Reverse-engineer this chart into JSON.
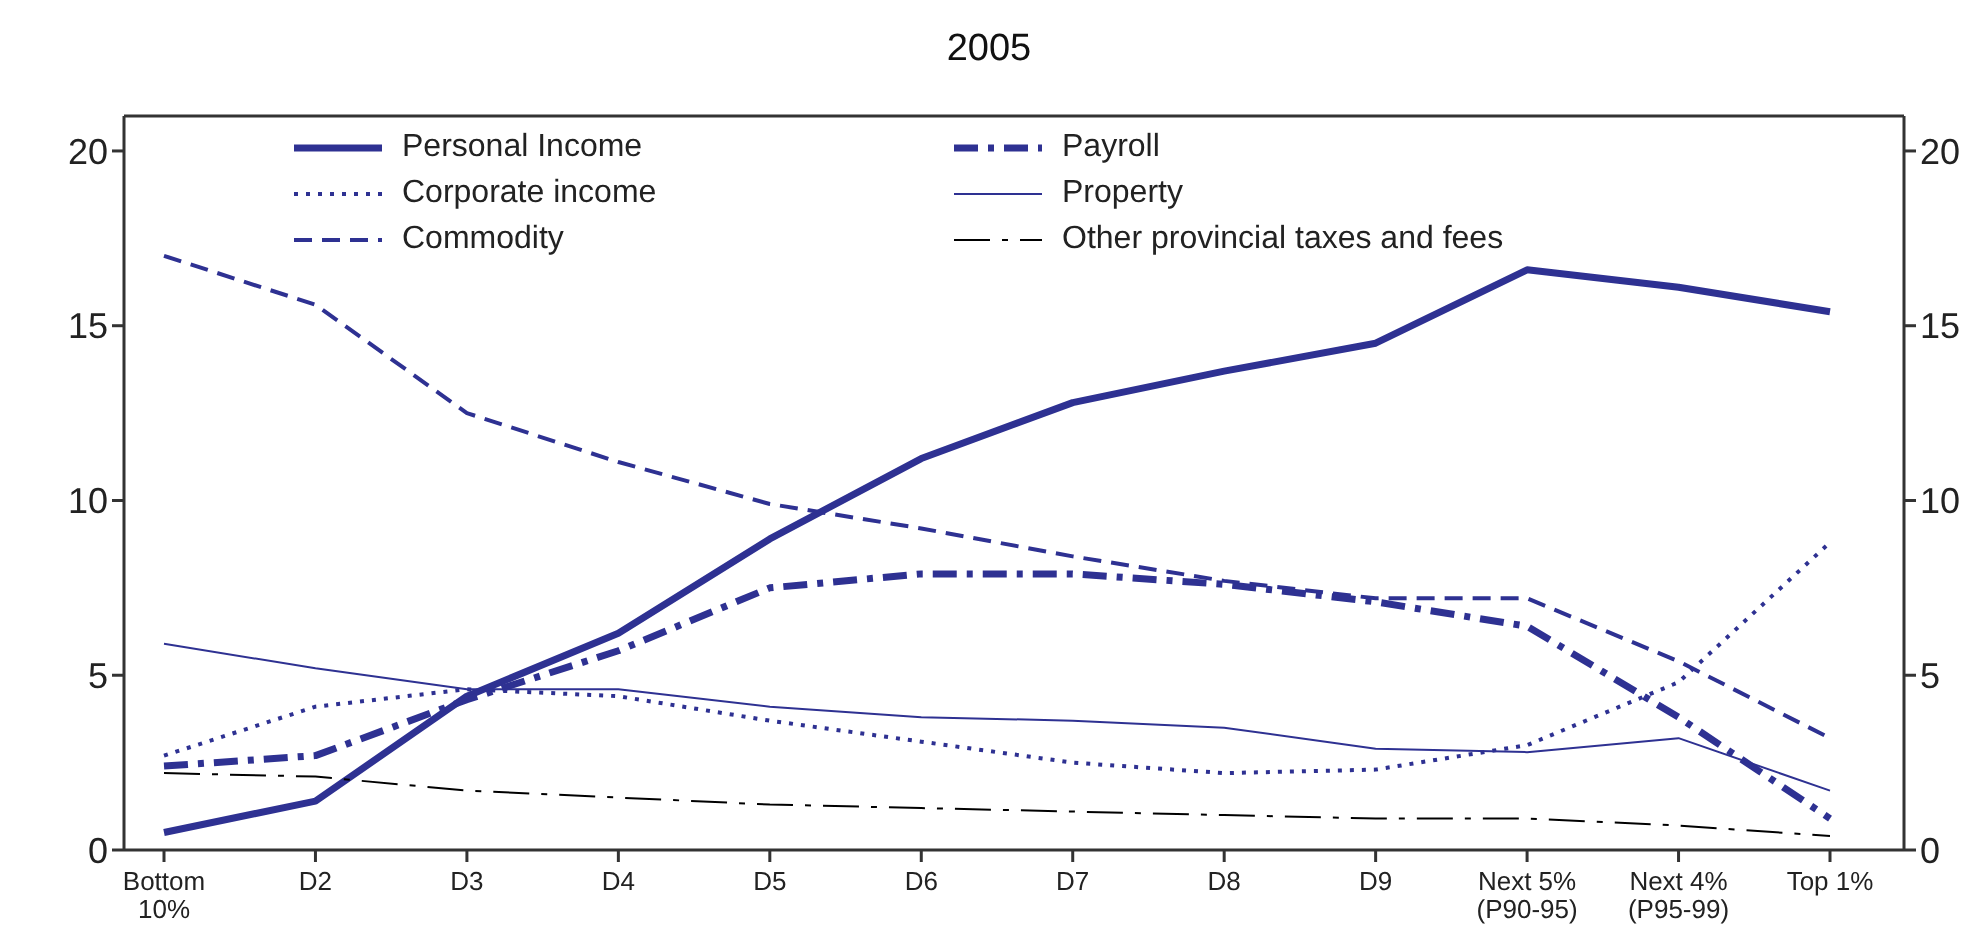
{
  "chart_data": {
    "type": "line",
    "title": "2005",
    "categories": [
      "Bottom\n10%",
      "D2",
      "D3",
      "D4",
      "D5",
      "D6",
      "D7",
      "D8",
      "D9",
      "Next 5%\n(P90-95)",
      "Next 4%\n(P95-99)",
      "Top 1%"
    ],
    "series": [
      {
        "name": "Personal Income",
        "color": "#2e3192",
        "line_style": "solid",
        "values": [
          0.5,
          1.4,
          4.4,
          6.2,
          8.9,
          11.2,
          12.8,
          13.7,
          14.5,
          16.6,
          16.1,
          15.4
        ]
      },
      {
        "name": "Corporate income",
        "color": "#2e3192",
        "line_style": "dotted",
        "values": [
          2.7,
          4.1,
          4.6,
          4.4,
          3.7,
          3.1,
          2.5,
          2.2,
          2.3,
          3.0,
          4.8,
          8.8
        ]
      },
      {
        "name": "Commodity",
        "color": "#2e3192",
        "line_style": "dashed",
        "values": [
          17.0,
          15.6,
          12.5,
          11.1,
          9.9,
          9.2,
          8.4,
          7.7,
          7.2,
          7.2,
          5.4,
          3.2
        ]
      },
      {
        "name": "Payroll",
        "color": "#2e3192",
        "line_style": "dashdot",
        "values": [
          2.4,
          2.7,
          4.3,
          5.7,
          7.5,
          7.9,
          7.9,
          7.6,
          7.1,
          6.4,
          3.8,
          0.9
        ]
      },
      {
        "name": "Property",
        "color": "#2e3192",
        "line_style": "solid",
        "values": [
          5.9,
          5.2,
          4.6,
          4.6,
          4.1,
          3.8,
          3.7,
          3.5,
          2.9,
          2.8,
          3.2,
          1.7
        ]
      },
      {
        "name": "Other provincial taxes and fees",
        "color": "#000000",
        "line_style": "dashdot",
        "values": [
          2.2,
          2.1,
          1.7,
          1.5,
          1.3,
          1.2,
          1.1,
          1.0,
          0.9,
          0.9,
          0.7,
          0.4
        ]
      }
    ],
    "ylim": [
      0,
      21
    ],
    "yticks": [
      0,
      5,
      10,
      15,
      20
    ],
    "y2lim": [
      0,
      21
    ],
    "y2ticks": [
      0,
      5,
      10,
      15,
      20
    ],
    "grid": false,
    "legend": "top",
    "marker": "none"
  }
}
